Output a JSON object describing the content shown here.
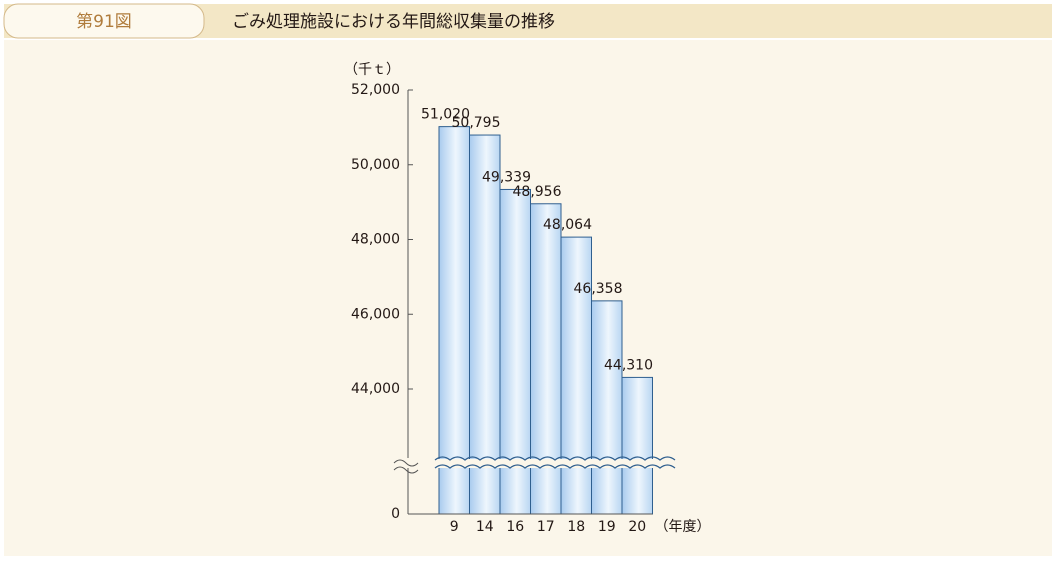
{
  "header": {
    "figure_no": "第91図",
    "title": "ごみ処理施設における年間総収集量の推移"
  },
  "chart_data": {
    "type": "bar",
    "y_unit": "（千ｔ）",
    "x_unit": "（年度）",
    "categories": [
      "9",
      "14",
      "16",
      "17",
      "18",
      "19",
      "20"
    ],
    "values": [
      51020,
      50795,
      49339,
      48956,
      48064,
      46358,
      44310
    ],
    "value_labels": [
      "51,020",
      "50,795",
      "49,339",
      "48,956",
      "48,064",
      "46,358",
      "44,310"
    ],
    "color": "#cfe3f7",
    "ylim": [
      0,
      52000
    ],
    "yticks": [
      0,
      {
        "value": 44000,
        "label": "44,000"
      },
      {
        "value": 46000,
        "label": "46,000"
      },
      {
        "value": 48000,
        "label": "48,000"
      },
      {
        "value": 50000,
        "label": "50,000"
      },
      {
        "value": 52000,
        "label": "52,000"
      }
    ],
    "axis_break": true
  }
}
